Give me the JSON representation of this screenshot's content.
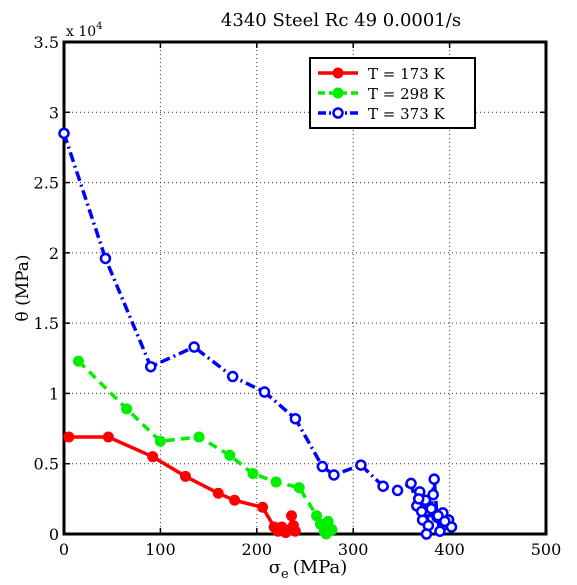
{
  "chart_data": {
    "type": "line",
    "title": "4340 Steel Rc 49 0.0001/s",
    "xlabel_main": "σ",
    "xlabel_sub": "e",
    "xlabel_unit": "(MPa)",
    "ylabel": "θ (MPa)",
    "y_multiplier_base": "x 10",
    "y_multiplier_exp": "4",
    "xlim": [
      0,
      500
    ],
    "ylim": [
      0,
      35000
    ],
    "x_ticks": [
      0,
      100,
      200,
      300,
      400,
      500
    ],
    "x_tick_labels": [
      "0",
      "100",
      "200",
      "300",
      "400",
      "500"
    ],
    "y_ticks": [
      0,
      5000,
      10000,
      15000,
      20000,
      25000,
      30000,
      35000
    ],
    "y_tick_labels": [
      "0",
      "0.5",
      "1",
      "1.5",
      "2",
      "2.5",
      "3",
      "3.5"
    ],
    "grid": true,
    "legend_position": "top-right",
    "series": [
      {
        "name": "T = 173 K",
        "color": "#ff0000",
        "line_style": "solid",
        "marker": "filled-circle",
        "x": [
          5,
          46,
          92,
          126,
          160,
          177,
          206,
          218,
          222,
          226,
          230,
          234,
          238,
          236,
          240
        ],
        "y": [
          6900,
          6900,
          5500,
          4100,
          2900,
          2400,
          1900,
          500,
          200,
          500,
          100,
          300,
          600,
          1300,
          200
        ]
      },
      {
        "name": "T = 298 K",
        "color": "#00ee00",
        "line_style": "dashed",
        "marker": "filled-circle",
        "x": [
          15,
          65,
          100,
          140,
          172,
          196,
          220,
          244,
          262,
          266,
          270,
          274,
          278,
          272,
          276
        ],
        "y": [
          12300,
          8900,
          6600,
          6900,
          5600,
          4300,
          3700,
          3300,
          1300,
          700,
          200,
          900,
          300,
          0,
          400
        ]
      },
      {
        "name": "T = 373 K",
        "color": "#0000ff",
        "line_style": "dash-dot",
        "marker": "open-circle",
        "x": [
          0,
          43,
          90,
          135,
          175,
          208,
          240,
          268,
          280,
          308,
          331,
          346,
          360,
          366,
          369,
          372,
          375,
          378,
          381,
          384,
          387,
          390,
          393,
          396,
          399,
          402,
          376,
          368,
          383,
          371,
          388,
          395
        ],
        "y": [
          28500,
          19600,
          11900,
          13300,
          11200,
          10100,
          8200,
          4800,
          4200,
          4900,
          3400,
          3100,
          3600,
          2000,
          3000,
          1000,
          2400,
          600,
          1800,
          3900,
          1200,
          200,
          1500,
          700,
          1000,
          500,
          0,
          2500,
          2800,
          1600,
          1300,
          900
        ]
      }
    ]
  }
}
